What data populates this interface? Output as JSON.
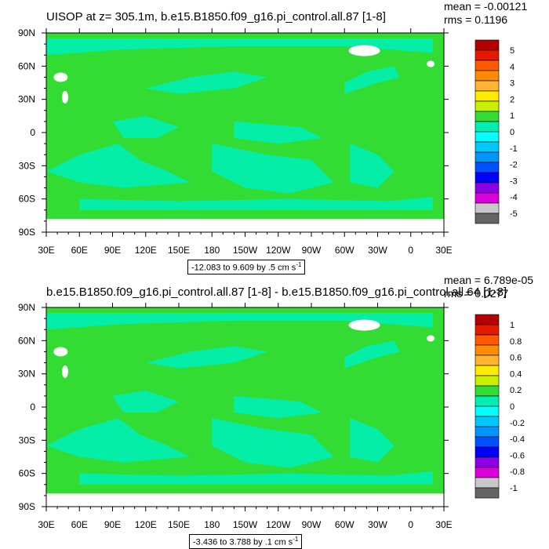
{
  "chart_data": [
    {
      "type": "heatmap",
      "title": "UISOP at z= 305.1m, b.e15.B1850.f09_g16.pi_control.all.87 [1-8]",
      "mean_text": "mean = -0.00121",
      "rms_text": "rms = 0.1196",
      "range_text": "-12.083 to 9.609 by .5 cm s",
      "range_sup": "-1",
      "x_ticks": [
        "30E",
        "60E",
        "90E",
        "120E",
        "150E",
        "180",
        "150W",
        "120W",
        "90W",
        "60W",
        "30W",
        "0",
        "30E"
      ],
      "y_ticks": [
        "90N",
        "60N",
        "30N",
        "0",
        "30S",
        "60S",
        "90S"
      ],
      "colorbar": {
        "labels": [
          "5",
          "4",
          "3",
          "2",
          "1",
          "0",
          "-1",
          "-2",
          "-3",
          "-4",
          "-5"
        ],
        "colors": [
          "#b40000",
          "#e61900",
          "#ff5a00",
          "#ff8c00",
          "#ffb432",
          "#ffeb00",
          "#c8f000",
          "#32dc32",
          "#00f0b4",
          "#00ffff",
          "#00c8ff",
          "#0096ff",
          "#0050ff",
          "#0000ff",
          "#8c00e6",
          "#dc00dc",
          "#c8c8c8",
          "#646464"
        ]
      }
    },
    {
      "type": "heatmap",
      "title": "b.e15.B1850.f09_g16.pi_control.all.87 [1-8] - b.e15.B1850.f09_g16.pi_control.all.64 [1-8]",
      "mean_text": "mean = 6.789e-05",
      "rms_text": "rms = 0.0277",
      "range_text": "-3.436 to 3.788 by .1 cm s",
      "range_sup": "-1",
      "x_ticks": [
        "30E",
        "60E",
        "90E",
        "120E",
        "150E",
        "180",
        "150W",
        "120W",
        "90W",
        "60W",
        "30W",
        "0",
        "30E"
      ],
      "y_ticks": [
        "90N",
        "60N",
        "30N",
        "0",
        "30S",
        "60S",
        "90S"
      ],
      "colorbar": {
        "labels": [
          "1",
          "0.8",
          "0.6",
          "0.4",
          "0.2",
          "0",
          "-0.2",
          "-0.4",
          "-0.6",
          "-0.8",
          "-1"
        ],
        "colors": [
          "#b40000",
          "#e61900",
          "#ff5a00",
          "#ff8c00",
          "#ffb432",
          "#ffeb00",
          "#c8f000",
          "#32dc32",
          "#00f0b4",
          "#00ffff",
          "#00c8ff",
          "#0096ff",
          "#0050ff",
          "#0000ff",
          "#8c00e6",
          "#dc00dc",
          "#c8c8c8",
          "#646464"
        ]
      }
    }
  ],
  "colors": {
    "field": "#32dc32",
    "negative_band": "#00f0b4",
    "land": "#ffffff"
  }
}
